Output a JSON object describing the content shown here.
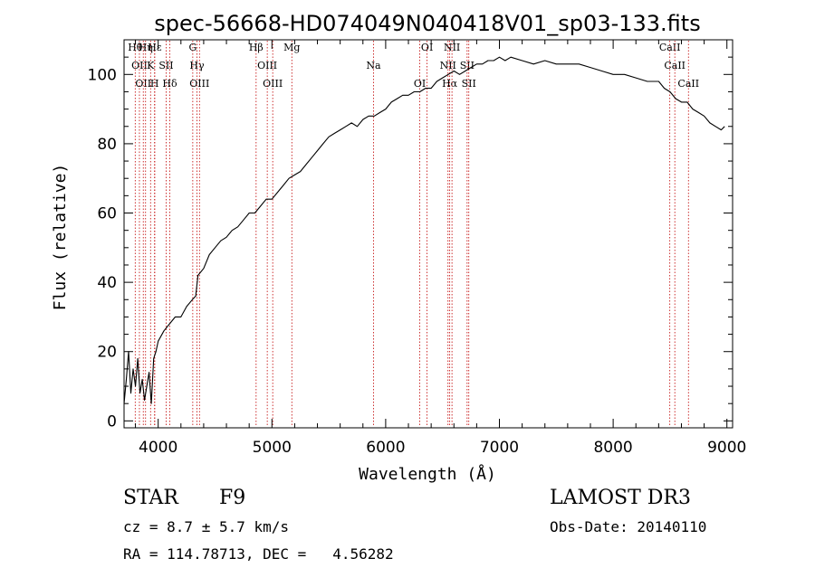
{
  "chart_data": {
    "type": "line",
    "title": "spec-56668-HD074049N040418V01_sp03-133.fits",
    "xlabel": "Wavelength (Å)",
    "ylabel": "Flux (relative)",
    "xlim": [
      3700,
      9050
    ],
    "ylim": [
      -2,
      110
    ],
    "xticks": [
      "4000",
      "5000",
      "6000",
      "7000",
      "8000",
      "9000"
    ],
    "yticks": [
      "0",
      "20",
      "40",
      "60",
      "80",
      "100"
    ],
    "grid": false,
    "series": [
      {
        "x": [
          3700,
          3720,
          3740,
          3760,
          3780,
          3800,
          3820,
          3840,
          3860,
          3880,
          3900,
          3920,
          3940,
          3960,
          3980,
          4000,
          4050,
          4100,
          4150,
          4200,
          4250,
          4300,
          4330,
          4350,
          4400,
          4450,
          4500,
          4550,
          4600,
          4650,
          4700,
          4750,
          4800,
          4850,
          4900,
          4950,
          5000,
          5050,
          5100,
          5150,
          5200,
          5250,
          5300,
          5350,
          5400,
          5450,
          5500,
          5550,
          5600,
          5650,
          5700,
          5750,
          5800,
          5850,
          5900,
          5950,
          6000,
          6050,
          6100,
          6150,
          6200,
          6250,
          6300,
          6350,
          6400,
          6450,
          6500,
          6550,
          6600,
          6650,
          6700,
          6750,
          6800,
          6850,
          6900,
          6950,
          7000,
          7050,
          7100,
          7200,
          7300,
          7400,
          7500,
          7600,
          7700,
          7800,
          7900,
          8000,
          8100,
          8200,
          8300,
          8400,
          8450,
          8500,
          8550,
          8600,
          8650,
          8700,
          8750,
          8800,
          8850,
          8900,
          8950,
          8980
        ],
        "y": [
          5,
          12,
          20,
          8,
          15,
          10,
          18,
          8,
          12,
          6,
          10,
          14,
          5,
          18,
          20,
          23,
          26,
          28,
          30,
          30,
          33,
          35,
          36,
          42,
          44,
          48,
          50,
          52,
          53,
          55,
          56,
          58,
          60,
          60,
          62,
          64,
          64,
          66,
          68,
          70,
          71,
          72,
          74,
          76,
          78,
          80,
          82,
          83,
          84,
          85,
          86,
          85,
          87,
          88,
          88,
          89,
          90,
          92,
          93,
          94,
          94,
          95,
          95,
          96,
          96,
          98,
          99,
          100,
          101,
          100,
          101,
          102,
          103,
          103,
          104,
          104,
          105,
          104,
          105,
          104,
          103,
          104,
          103,
          103,
          103,
          102,
          101,
          100,
          100,
          99,
          98,
          98,
          96,
          95,
          93,
          92,
          92,
          90,
          89,
          88,
          86,
          85,
          84,
          85
        ]
      }
    ],
    "lines": [
      {
        "x": 3798,
        "labels": [
          "Hθ"
        ]
      },
      {
        "x": 3835,
        "labels": [
          "OII"
        ]
      },
      {
        "x": 3869,
        "labels": [
          "OII"
        ]
      },
      {
        "x": 3889,
        "labels": [
          "Hη"
        ]
      },
      {
        "x": 3933,
        "labels": [
          "K"
        ]
      },
      {
        "x": 3968,
        "labels": [
          "H"
        ]
      },
      {
        "x": 3970,
        "labels": [
          "Hε"
        ]
      },
      {
        "x": 4070,
        "labels": [
          "SII"
        ]
      },
      {
        "x": 4102,
        "labels": [
          "Hδ"
        ]
      },
      {
        "x": 4304,
        "labels": [
          "G"
        ]
      },
      {
        "x": 4341,
        "labels": [
          "Hγ"
        ]
      },
      {
        "x": 4363,
        "labels": [
          "OIII"
        ]
      },
      {
        "x": 4861,
        "labels": [
          "Hβ"
        ]
      },
      {
        "x": 4959,
        "labels": [
          "OIII"
        ]
      },
      {
        "x": 5007,
        "labels": [
          "OIII"
        ]
      },
      {
        "x": 5175,
        "labels": [
          "Mg"
        ]
      },
      {
        "x": 5893,
        "labels": [
          "Na"
        ]
      },
      {
        "x": 6300,
        "labels": [
          "OI"
        ]
      },
      {
        "x": 6364,
        "labels": [
          "OI"
        ]
      },
      {
        "x": 6548,
        "labels": [
          "NII"
        ]
      },
      {
        "x": 6563,
        "labels": [
          "Hα"
        ]
      },
      {
        "x": 6583,
        "labels": [
          "NII"
        ]
      },
      {
        "x": 6716,
        "labels": [
          "SII"
        ]
      },
      {
        "x": 6731,
        "labels": [
          "SII"
        ]
      },
      {
        "x": 8498,
        "labels": [
          "CaII"
        ]
      },
      {
        "x": 8542,
        "labels": [
          "CaII"
        ]
      },
      {
        "x": 8662,
        "labels": [
          "CaII"
        ]
      }
    ]
  },
  "info": {
    "object_class": "STAR",
    "subclass": "F9",
    "survey": "LAMOST DR3",
    "cz": "cz = 8.7 ± 5.7 km/s",
    "obs_date": "Obs-Date: 20140110",
    "coords": "RA = 114.78713, DEC =   4.56282"
  },
  "colors": {
    "spectrum": "#000000",
    "line_markers": "#c00000",
    "background": "#ffffff"
  }
}
